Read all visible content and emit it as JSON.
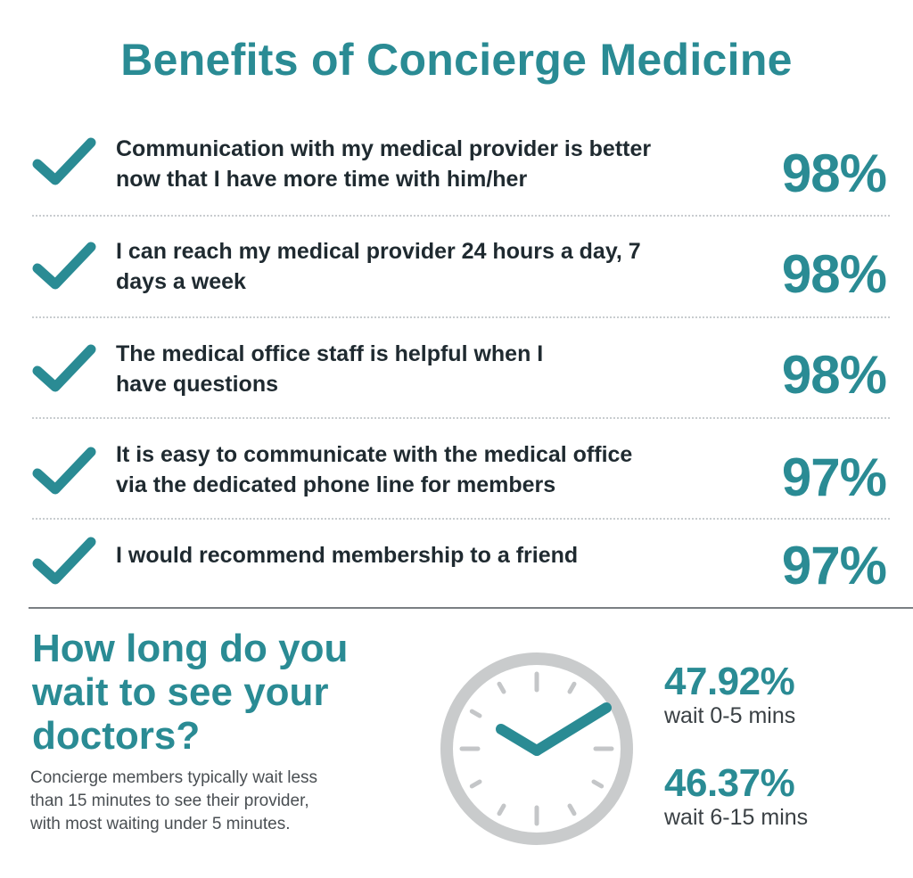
{
  "title": "Benefits of Concierge Medicine",
  "benefits": [
    {
      "line1": "Communication with my medical provider is better",
      "line2": "now that I have more time with him/her",
      "percent": "98%"
    },
    {
      "line1": "I can reach my medical provider 24 hours a day, 7",
      "line2": "days a week",
      "percent": "98%"
    },
    {
      "line1": "The medical office staff is helpful when I",
      "line2": "have questions",
      "percent": "98%"
    },
    {
      "line1": "It is easy to communicate with the medical office",
      "line2": "via the dedicated phone line for members",
      "percent": "97%"
    },
    {
      "line1": "I would recommend membership to a friend",
      "line2": "",
      "percent": "97%"
    }
  ],
  "wait": {
    "heading_line1": "How long do you",
    "heading_line2": "wait to see your",
    "heading_line3": "doctors?",
    "desc_line1": "Concierge members typically wait less",
    "desc_line2": "than 15 minutes to see their provider,",
    "desc_line3": "with most waiting under 5 minutes.",
    "stats": [
      {
        "value": "47.92%",
        "label": "wait 0-5 mins"
      },
      {
        "value": "46.37%",
        "label": "wait 6-15 mins"
      }
    ]
  },
  "colors": {
    "accent": "#2a8b94",
    "text": "#1f2a30",
    "clock_ring": "#c9cbcc"
  },
  "icons": {
    "check": "check-icon",
    "clock": "clock-icon"
  }
}
